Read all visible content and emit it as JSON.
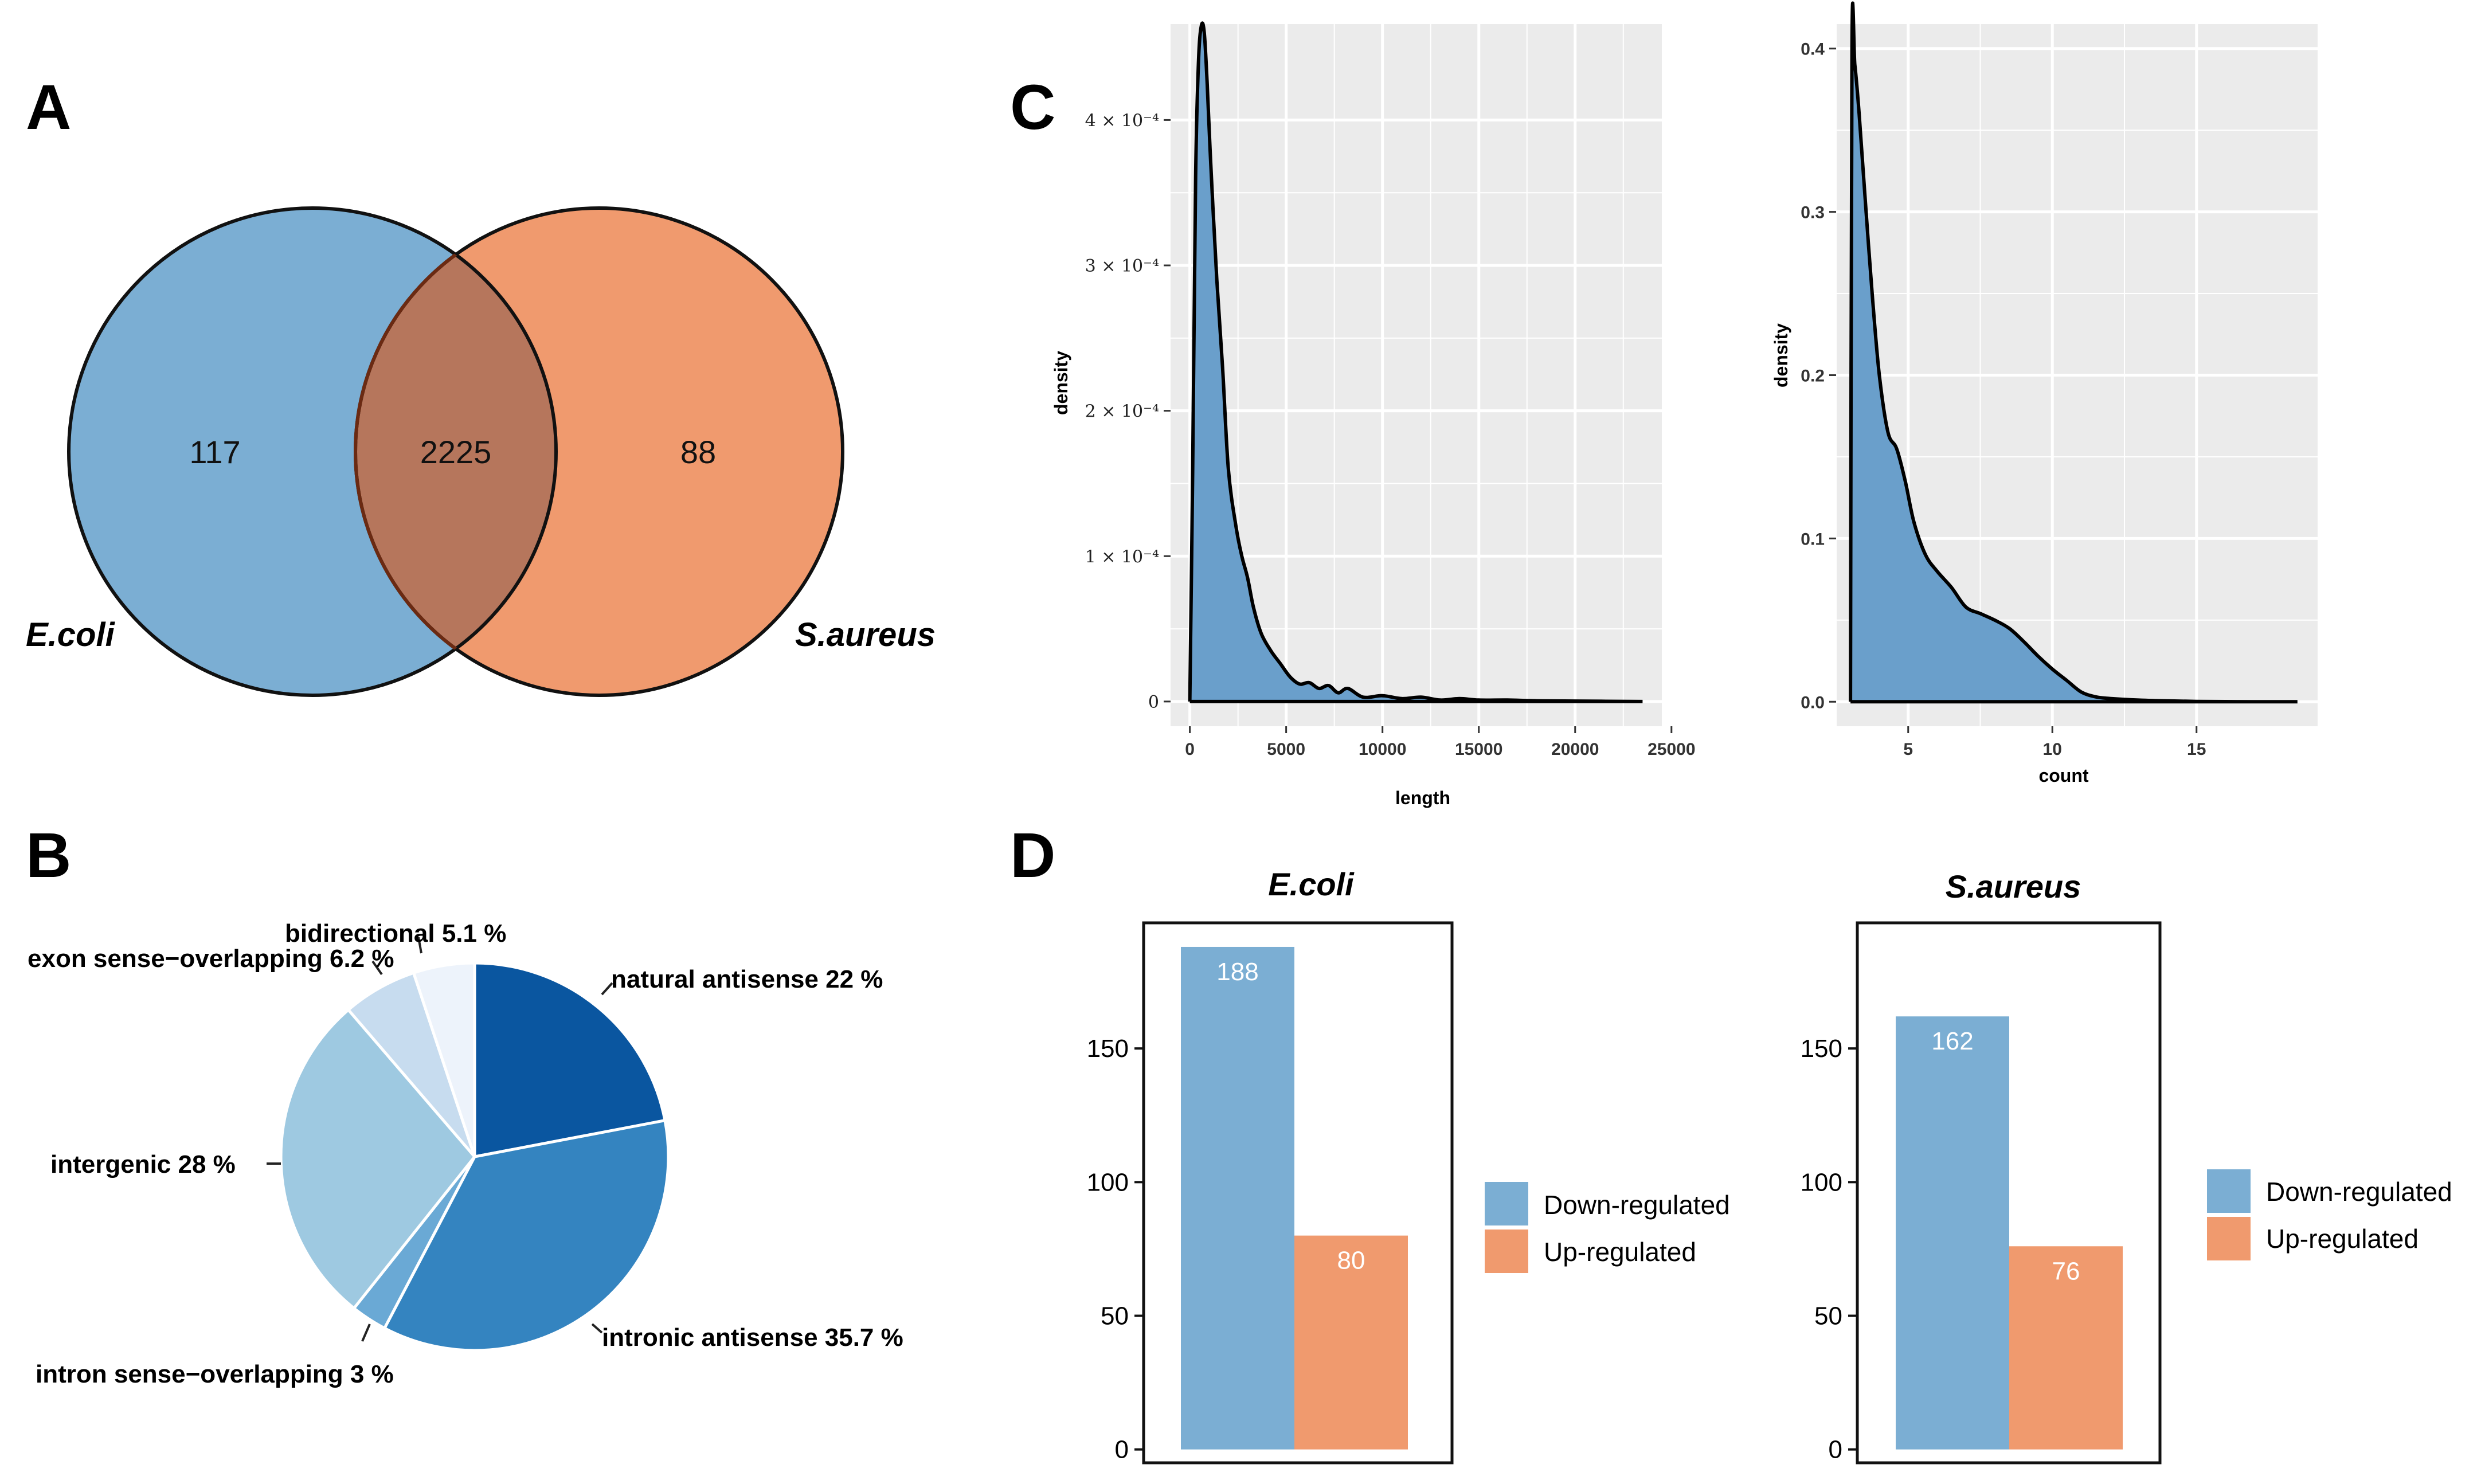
{
  "panels": {
    "A": {
      "letter": "A",
      "chart_data": {
        "type": "venn",
        "sets": [
          {
            "name": "E.coli",
            "only": "117",
            "color": "#7BAED3"
          },
          {
            "name": "S.aureus",
            "only": "88",
            "color": "#F09A6E"
          }
        ],
        "intersection": "2225",
        "intersection_color": "#B6765C"
      }
    },
    "B": {
      "letter": "B",
      "chart_data": {
        "type": "pie",
        "slices": [
          {
            "label": "natural antisense 22 %",
            "value": 22,
            "color": "#0A56A0"
          },
          {
            "label": "intronic antisense 35.7 %",
            "value": 35.7,
            "color": "#3484C0"
          },
          {
            "label": "intron sense−overlapping 3 %",
            "value": 3,
            "color": "#6AA9D5"
          },
          {
            "label": "intergenic 28 %",
            "value": 28,
            "color": "#9EC9E1"
          },
          {
            "label": "exon sense−overlapping 6.2 %",
            "value": 6.2,
            "color": "#C7DCEF"
          },
          {
            "label": "bidirectional 5.1 %",
            "value": 5.1,
            "color": "#EDF3FB"
          }
        ]
      }
    },
    "C": {
      "letter": "C",
      "chart_data": [
        {
          "type": "area",
          "xlabel": "length",
          "ylabel": "density",
          "xlim": [
            -1000,
            24500
          ],
          "ylim": [
            -1.7e-05,
            0.000466
          ],
          "xticks": [
            0,
            5000,
            10000,
            15000,
            20000,
            25000
          ],
          "xtick_labels": [
            "0",
            "5000",
            "10000",
            "15000",
            "20000",
            "25000"
          ],
          "yticks": [
            0,
            0.0001,
            0.0002,
            0.0003,
            0.0004
          ],
          "ytick_labels": [
            "0",
            "1 × 10⁻⁴",
            "2 × 10⁻⁴",
            "3 × 10⁻⁴",
            "4 × 10⁻⁴"
          ],
          "x": [
            0,
            150,
            300,
            450,
            600,
            750,
            900,
            1050,
            1200,
            1400,
            1700,
            2000,
            2400,
            2700,
            3000,
            3300,
            3700,
            4200,
            4700,
            5200,
            5700,
            6200,
            6700,
            7200,
            7700,
            8200,
            9000,
            10000,
            11000,
            12000,
            13000,
            14000,
            15000,
            16500,
            18000,
            20000,
            23500
          ],
          "y": [
            0,
            0.00016,
            0.00036,
            0.00044,
            0.000465,
            0.00046,
            0.000425,
            0.00038,
            0.00034,
            0.00029,
            0.00023,
            0.00016,
            0.00012,
            0.0001,
            8.5e-05,
            6.5e-05,
            4.7e-05,
            3.5e-05,
            2.6e-05,
            1.7e-05,
            1.2e-05,
            1.3e-05,
            9e-06,
            1.1e-05,
            6e-06,
            9e-06,
            3e-06,
            4e-06,
            2e-06,
            3e-06,
            1e-06,
            2e-06,
            1e-06,
            1e-06,
            5e-07,
            3e-07,
            0
          ],
          "fill_color": "#6A9FCB",
          "grid": true
        },
        {
          "type": "area",
          "xlabel": "count",
          "ylabel": "density",
          "xlim": [
            2.5,
            19.2
          ],
          "ylim": [
            -0.015,
            0.415
          ],
          "xticks": [
            5,
            10,
            15
          ],
          "xtick_labels": [
            "5",
            "10",
            "15"
          ],
          "yticks": [
            0,
            0.1,
            0.2,
            0.3,
            0.4
          ],
          "ytick_labels": [
            "0.0",
            "0.1",
            "0.2",
            "0.3",
            "0.4"
          ],
          "x": [
            3,
            3.05,
            3.15,
            3.3,
            3.5,
            3.75,
            4,
            4.3,
            4.6,
            4.9,
            5.2,
            5.6,
            6,
            6.5,
            7,
            7.5,
            8,
            8.5,
            9,
            9.5,
            10,
            10.5,
            11,
            11.5,
            12,
            13,
            14,
            15,
            16,
            17,
            18.5
          ],
          "y": [
            0,
            0.4,
            0.39,
            0.36,
            0.31,
            0.25,
            0.2,
            0.165,
            0.155,
            0.135,
            0.11,
            0.09,
            0.08,
            0.07,
            0.058,
            0.054,
            0.05,
            0.045,
            0.037,
            0.028,
            0.02,
            0.013,
            0.006,
            0.003,
            0.002,
            0.001,
            0.0005,
            0.0002,
            0.0001,
            0,
            0
          ],
          "fill_color": "#6A9FCB",
          "grid": true
        }
      ]
    },
    "D": {
      "letter": "D",
      "chart_data": [
        {
          "type": "bar",
          "title": "E.coli",
          "categories": [
            "Down-regulated",
            "Up-regulated"
          ],
          "values": [
            188,
            80
          ],
          "colors": [
            "#7BAED3",
            "#F09A6E"
          ],
          "ylim": [
            -5,
            197
          ],
          "yticks": [
            0,
            50,
            100,
            150
          ],
          "ytick_labels": [
            "0",
            "50",
            "100",
            "150"
          ],
          "legend": [
            "Down-regulated",
            "Up-regulated"
          ]
        },
        {
          "type": "bar",
          "title": "S.aureus",
          "categories": [
            "Down-regulated",
            "Up-regulated"
          ],
          "values": [
            162,
            76
          ],
          "colors": [
            "#7BAED3",
            "#F09A6E"
          ],
          "ylim": [
            -5,
            197
          ],
          "yticks": [
            0,
            50,
            100,
            150
          ],
          "ytick_labels": [
            "0",
            "50",
            "100",
            "150"
          ],
          "legend": [
            "Down-regulated",
            "Up-regulated"
          ]
        }
      ]
    }
  }
}
